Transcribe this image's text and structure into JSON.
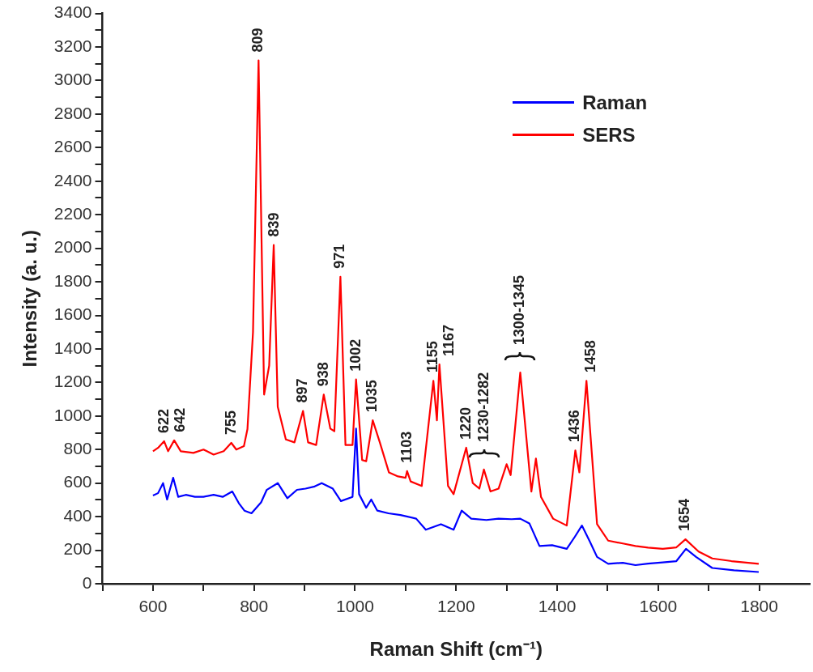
{
  "chart_data": {
    "type": "line",
    "xlabel": "Raman Shift (cm⁻¹)",
    "ylabel": "Intensity (a. u.)",
    "xlim": [
      500,
      1900
    ],
    "xticks": [
      {
        "value": 500,
        "label": null
      },
      600,
      {
        "value": 700,
        "label": null
      },
      800,
      {
        "value": 900,
        "label": null
      },
      1000,
      {
        "value": 1100,
        "label": null
      },
      1200,
      {
        "value": 1300,
        "label": null
      },
      1400,
      {
        "value": 1500,
        "label": null
      },
      1600,
      {
        "value": 1700,
        "label": null
      },
      1800
    ],
    "ylim": [
      0,
      3400
    ],
    "yticks": [
      0,
      {
        "value": 100,
        "label": null
      },
      200,
      {
        "value": 300,
        "label": null
      },
      400,
      {
        "value": 500,
        "label": null
      },
      600,
      {
        "value": 700,
        "label": null
      },
      800,
      {
        "value": 900,
        "label": null
      },
      1000,
      {
        "value": 1100,
        "label": null
      },
      1200,
      {
        "value": 1300,
        "label": null
      },
      1400,
      {
        "value": 1500,
        "label": null
      },
      1600,
      {
        "value": 1700,
        "label": null
      },
      1800,
      {
        "value": 1900,
        "label": null
      },
      2000,
      {
        "value": 2100,
        "label": null
      },
      2200,
      {
        "value": 2300,
        "label": null
      },
      2400,
      {
        "value": 2500,
        "label": null
      },
      2600,
      {
        "value": 2700,
        "label": null
      },
      2800,
      {
        "value": 2900,
        "label": null
      },
      3000,
      {
        "value": 3100,
        "label": null
      },
      3200,
      {
        "value": 3300,
        "label": null
      },
      3400
    ],
    "grid": false,
    "legend": "top right",
    "marker": "none",
    "line_style": "solid",
    "series": [
      {
        "name": "Raman",
        "color": "#0000ff",
        "x": [
          600,
          610,
          620,
          628,
          640,
          650,
          665,
          683,
          700,
          720,
          738,
          757,
          770,
          781,
          795,
          814,
          825,
          847,
          866,
          885,
          902,
          920,
          934,
          956,
          972,
          995,
          1002,
          1008,
          1022,
          1032,
          1044,
          1066,
          1090,
          1121,
          1140,
          1170,
          1195,
          1211,
          1230,
          1260,
          1284,
          1310,
          1327,
          1345,
          1365,
          1390,
          1419,
          1435,
          1449,
          1465,
          1479,
          1501,
          1530,
          1555,
          1580,
          1609,
          1636,
          1655,
          1675,
          1707,
          1750,
          1799
        ],
        "values": [
          526,
          540,
          600,
          502,
          632,
          518,
          530,
          518,
          518,
          530,
          518,
          550,
          480,
          436,
          420,
          485,
          559,
          600,
          510,
          560,
          567,
          580,
          600,
          567,
          493,
          518,
          925,
          534,
          453,
          502,
          436,
          420,
          410,
          388,
          322,
          355,
          322,
          436,
          388,
          380,
          388,
          385,
          388,
          360,
          225,
          230,
          208,
          280,
          347,
          250,
          160,
          119,
          125,
          111,
          120,
          127,
          135,
          208,
          160,
          94,
          80,
          70
        ]
      },
      {
        "name": "SERS",
        "color": "#ff0000",
        "x": [
          600,
          610,
          622,
          630,
          642,
          655,
          680,
          700,
          720,
          740,
          755,
          765,
          780,
          787,
          798,
          809,
          820,
          830,
          839,
          847,
          863,
          880,
          897,
          907,
          923,
          938,
          951,
          959,
          971,
          981,
          995,
          1002,
          1014,
          1022,
          1035,
          1049,
          1067,
          1085,
          1100,
          1103,
          1110,
          1132,
          1155,
          1162,
          1167,
          1184,
          1195,
          1220,
          1233,
          1246,
          1255,
          1268,
          1284,
          1300,
          1308,
          1327,
          1349,
          1358,
          1368,
          1392,
          1419,
          1436,
          1444,
          1458,
          1479,
          1501,
          1530,
          1555,
          1580,
          1609,
          1636,
          1654,
          1680,
          1707,
          1745,
          1799
        ],
        "values": [
          790,
          810,
          850,
          790,
          855,
          790,
          780,
          800,
          770,
          790,
          840,
          800,
          820,
          922,
          1500,
          3120,
          1128,
          1300,
          2020,
          1055,
          860,
          843,
          1030,
          843,
          827,
          1128,
          925,
          909,
          1830,
          827,
          827,
          1218,
          738,
          730,
          974,
          843,
          664,
          640,
          632,
          672,
          610,
          583,
          1210,
          974,
          1308,
          583,
          534,
          811,
          600,
          567,
          681,
          550,
          567,
          713,
          648,
          1259,
          550,
          746,
          518,
          388,
          347,
          795,
          664,
          1210,
          355,
          257,
          240,
          225,
          215,
          208,
          217,
          265,
          192,
          151,
          135,
          119
        ]
      }
    ],
    "annotations": [
      {
        "text": "622",
        "x": 622,
        "y": 850
      },
      {
        "text": "642",
        "x": 642,
        "y": 855
      },
      {
        "text": "755",
        "x": 755,
        "y": 840
      },
      {
        "text": "809",
        "x": 809,
        "y": 3120
      },
      {
        "text": "839",
        "x": 839,
        "y": 2020
      },
      {
        "text": "897",
        "x": 897,
        "y": 1030
      },
      {
        "text": "938",
        "x": 938,
        "y": 1128
      },
      {
        "text": "971",
        "x": 971,
        "y": 1830
      },
      {
        "text": "1002",
        "x": 1002,
        "y": 1218
      },
      {
        "text": "1035",
        "x": 1035,
        "y": 974
      },
      {
        "text": "1103",
        "x": 1103,
        "y": 672
      },
      {
        "text": "1155",
        "x": 1155,
        "y": 1210
      },
      {
        "text": "1167",
        "x": 1167,
        "y": 1308
      },
      {
        "text": "1220",
        "x": 1220,
        "y": 811
      },
      {
        "text": "1230-1282",
        "x": 1255,
        "y": 681
      },
      {
        "text": "1300-1345",
        "x": 1327,
        "y": 1259
      },
      {
        "text": "1436",
        "x": 1436,
        "y": 795
      },
      {
        "text": "1458",
        "x": 1458,
        "y": 1210
      },
      {
        "text": "1654",
        "x": 1654,
        "y": 265
      }
    ]
  }
}
